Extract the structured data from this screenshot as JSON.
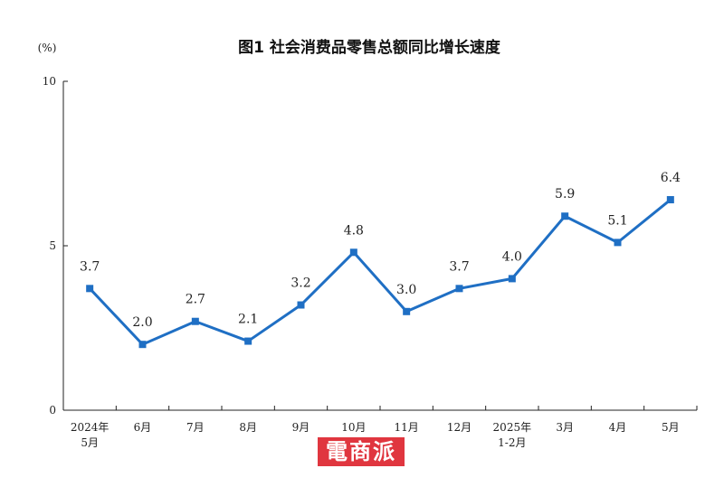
{
  "chart_data": {
    "type": "line",
    "title": "图1 社会消费品零售总额同比增长速度",
    "ylabel": "(%)",
    "ylim": [
      0,
      10
    ],
    "yticks": [
      0,
      5,
      10
    ],
    "categories": [
      [
        "2024年",
        "5月"
      ],
      [
        "6月"
      ],
      [
        "7月"
      ],
      [
        "8月"
      ],
      [
        "9月"
      ],
      [
        "10月"
      ],
      [
        "11月"
      ],
      [
        "12月"
      ],
      [
        "2025年",
        "1-2月"
      ],
      [
        "3月"
      ],
      [
        "4月"
      ],
      [
        "5月"
      ]
    ],
    "series": [
      {
        "values": [
          3.7,
          2.0,
          2.7,
          2.1,
          3.2,
          4.8,
          3.0,
          3.7,
          4.0,
          5.9,
          5.1,
          6.4
        ],
        "labels": [
          "3.7",
          "2.0",
          "2.7",
          "2.1",
          "3.2",
          "4.8",
          "3.0",
          "3.7",
          "4.0",
          "5.9",
          "5.1",
          "6.4"
        ],
        "color": "#1f6fc4"
      }
    ],
    "grid": false
  },
  "watermark": {
    "text": "電商派",
    "color": "#e0363f"
  }
}
